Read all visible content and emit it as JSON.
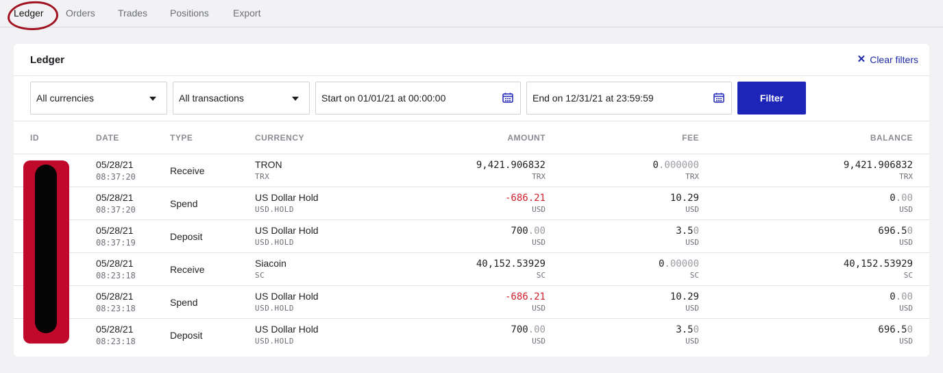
{
  "tabs": [
    {
      "label": "Ledger",
      "active": true
    },
    {
      "label": "Orders"
    },
    {
      "label": "Trades"
    },
    {
      "label": "Positions"
    },
    {
      "label": "Export"
    }
  ],
  "card": {
    "title": "Ledger",
    "clear_filters": "Clear filters",
    "filters": {
      "currency": "All currencies",
      "transactions": "All transactions",
      "start": "Start on 01/01/21 at 00:00:00",
      "end": "End on 12/31/21 at 23:59:59",
      "button": "Filter"
    }
  },
  "table": {
    "headers": {
      "id": "ID",
      "date": "DATE",
      "type": "TYPE",
      "currency": "CURRENCY",
      "amount": "AMOUNT",
      "fee": "FEE",
      "balance": "BALANCE"
    },
    "rows": [
      {
        "date": "05/28/21",
        "time": "08:37:20",
        "type": "Receive",
        "currency": "TRON",
        "code": "TRX",
        "amount": {
          "main": "9,421.906832",
          "dim": ""
        },
        "amount_unit": "TRX",
        "fee": {
          "main": "0",
          "dim": ".000000"
        },
        "fee_unit": "TRX",
        "balance": {
          "main": "9,421.906832",
          "dim": ""
        },
        "balance_unit": "TRX"
      },
      {
        "date": "05/28/21",
        "time": "08:37:20",
        "type": "Spend",
        "currency": "US Dollar Hold",
        "code": "USD.HOLD",
        "amount": {
          "main": "-686.21",
          "dim": ""
        },
        "amount_unit": "USD",
        "negative": true,
        "fee": {
          "main": "10.29",
          "dim": ""
        },
        "fee_unit": "USD",
        "balance": {
          "main": "0",
          "dim": ".00"
        },
        "balance_unit": "USD"
      },
      {
        "date": "05/28/21",
        "time": "08:37:19",
        "type": "Deposit",
        "currency": "US Dollar Hold",
        "code": "USD.HOLD",
        "amount": {
          "main": "700",
          "dim": ".00"
        },
        "amount_unit": "USD",
        "fee": {
          "main": "3.5",
          "dim": "0"
        },
        "fee_unit": "USD",
        "balance": {
          "main": "696.5",
          "dim": "0"
        },
        "balance_unit": "USD"
      },
      {
        "date": "05/28/21",
        "time": "08:23:18",
        "type": "Receive",
        "currency": "Siacoin",
        "code": "SC",
        "amount": {
          "main": "40,152.53929",
          "dim": ""
        },
        "amount_unit": "SC",
        "fee": {
          "main": "0",
          "dim": ".00000"
        },
        "fee_unit": "SC",
        "balance": {
          "main": "40,152.53929",
          "dim": ""
        },
        "balance_unit": "SC"
      },
      {
        "date": "05/28/21",
        "time": "08:23:18",
        "type": "Spend",
        "currency": "US Dollar Hold",
        "code": "USD.HOLD",
        "amount": {
          "main": "-686.21",
          "dim": ""
        },
        "amount_unit": "USD",
        "negative": true,
        "fee": {
          "main": "10.29",
          "dim": ""
        },
        "fee_unit": "USD",
        "balance": {
          "main": "0",
          "dim": ".00"
        },
        "balance_unit": "USD"
      },
      {
        "date": "05/28/21",
        "time": "08:23:18",
        "type": "Deposit",
        "currency": "US Dollar Hold",
        "code": "USD.HOLD",
        "amount": {
          "main": "700",
          "dim": ".00"
        },
        "amount_unit": "USD",
        "fee": {
          "main": "3.5",
          "dim": "0"
        },
        "fee_unit": "USD",
        "balance": {
          "main": "696.5",
          "dim": "0"
        },
        "balance_unit": "USD"
      }
    ]
  },
  "colors": {
    "accent": "#1d24b8",
    "negative": "#d0212c",
    "annotation": "#a0121f",
    "redaction": "#c0092b"
  },
  "icons": {
    "clear": "close-icon",
    "dropdown": "caret-down-icon",
    "date": "calendar-icon"
  }
}
